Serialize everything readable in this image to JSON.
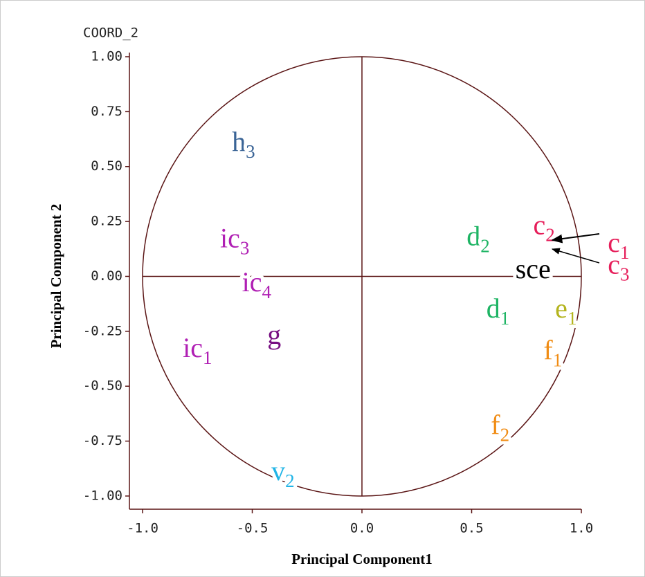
{
  "chart_data": {
    "type": "scatter",
    "corner_label": "COORD_2",
    "x_label": "Principal Component1",
    "y_label": "Principal Component 2",
    "xlim": [
      -1.06,
      1.0
    ],
    "ylim": [
      -1.06,
      1.0
    ],
    "xticks": [
      {
        "value": -1,
        "label": "-1.0"
      },
      {
        "value": -0.5,
        "label": "-0.5"
      },
      {
        "value": 0,
        "label": "0.0"
      },
      {
        "value": 0.5,
        "label": "0.5"
      },
      {
        "value": 1,
        "label": "1.0"
      }
    ],
    "yticks": [
      {
        "value": 1,
        "label": "1.00"
      },
      {
        "value": 0.75,
        "label": "0.75"
      },
      {
        "value": 0.5,
        "label": "0.50"
      },
      {
        "value": 0.25,
        "label": "0.25"
      },
      {
        "value": 0,
        "label": "0.00"
      },
      {
        "value": -0.25,
        "label": "-0.25"
      },
      {
        "value": -0.5,
        "label": "-0.50"
      },
      {
        "value": -0.75,
        "label": "-0.75"
      },
      {
        "value": -1,
        "label": "-1.00"
      }
    ],
    "axis_color": "#5a1414",
    "points": [
      {
        "name": "h",
        "sub": "3",
        "x": -0.54,
        "y": 0.61,
        "color": "#3a6496"
      },
      {
        "name": "ic",
        "sub": "3",
        "x": -0.58,
        "y": 0.17,
        "color": "#b020b4"
      },
      {
        "name": "ic",
        "sub": "4",
        "x": -0.48,
        "y": -0.03,
        "color": "#b020b4"
      },
      {
        "name": "ic",
        "sub": "1",
        "x": -0.75,
        "y": -0.33,
        "color": "#b020b4"
      },
      {
        "name": "g",
        "sub": null,
        "x": -0.4,
        "y": -0.27,
        "color": "#781082"
      },
      {
        "name": "v",
        "sub": "2",
        "x": -0.36,
        "y": -0.89,
        "color": "#20b4e6"
      },
      {
        "name": "d",
        "sub": "2",
        "x": 0.53,
        "y": 0.18,
        "color": "#1eb464"
      },
      {
        "name": "d",
        "sub": "1",
        "x": 0.62,
        "y": -0.15,
        "color": "#1eb464"
      },
      {
        "name": "c",
        "sub": "2",
        "x": 0.83,
        "y": 0.23,
        "color": "#e61e5a"
      },
      {
        "name": "c",
        "sub": "1",
        "x": 1.17,
        "y": 0.15,
        "color": "#e61e5a"
      },
      {
        "name": "c",
        "sub": "3",
        "x": 1.17,
        "y": 0.05,
        "color": "#e61e5a"
      },
      {
        "name": "sce",
        "sub": null,
        "x": 0.78,
        "y": 0.03,
        "color": "#000000"
      },
      {
        "name": "e",
        "sub": "1",
        "x": 0.93,
        "y": -0.15,
        "color": "#b4b41e"
      },
      {
        "name": "f",
        "sub": "1",
        "x": 0.87,
        "y": -0.34,
        "color": "#f08c14"
      },
      {
        "name": "f",
        "sub": "2",
        "x": 0.63,
        "y": -0.68,
        "color": "#f08c14"
      }
    ]
  }
}
